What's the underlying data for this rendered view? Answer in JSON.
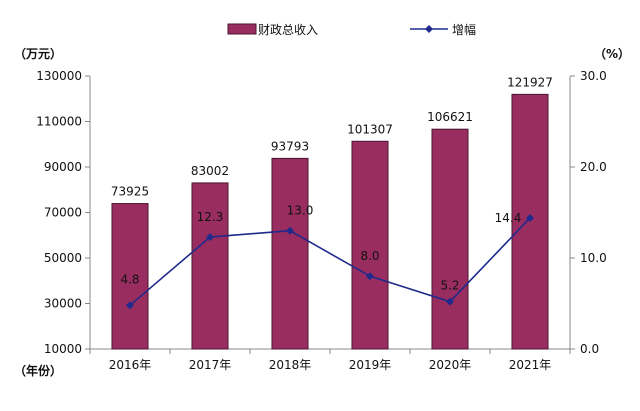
{
  "colors": {
    "bar": "#9a2d5f",
    "bar_edge": "#4a1530",
    "line": "#1f2a8c",
    "axis": "#888888"
  },
  "chart_data": {
    "type": "bar",
    "categories": [
      "2016年",
      "2017年",
      "2018年",
      "2019年",
      "2020年",
      "2021年"
    ],
    "series": [
      {
        "name": "财政总收入",
        "type": "bar",
        "axis": "left",
        "values": [
          73925,
          83002,
          93793,
          101307,
          106621,
          121927
        ],
        "labels": [
          "73925",
          "83002",
          "93793",
          "101307",
          "106621",
          "121927"
        ]
      },
      {
        "name": "增幅",
        "type": "line",
        "axis": "right",
        "marker": "diamond",
        "values": [
          4.8,
          12.3,
          13.0,
          8.0,
          5.2,
          14.4
        ],
        "labels": [
          "4.8",
          "12.3",
          "13.0",
          "8.0",
          "5.2",
          "14.4"
        ]
      }
    ],
    "y_left": {
      "unit": "（万元）",
      "ylim": [
        10000,
        130000
      ],
      "ticks": [
        "10000",
        "30000",
        "50000",
        "70000",
        "90000",
        "110000",
        "130000"
      ]
    },
    "y_right": {
      "unit": "（%）",
      "ylim": [
        0,
        30
      ],
      "ticks": [
        "0.0",
        "10.0",
        "20.0",
        "30.0"
      ]
    },
    "x_unit": "（年份）",
    "legend_position": "top",
    "grid": false
  }
}
